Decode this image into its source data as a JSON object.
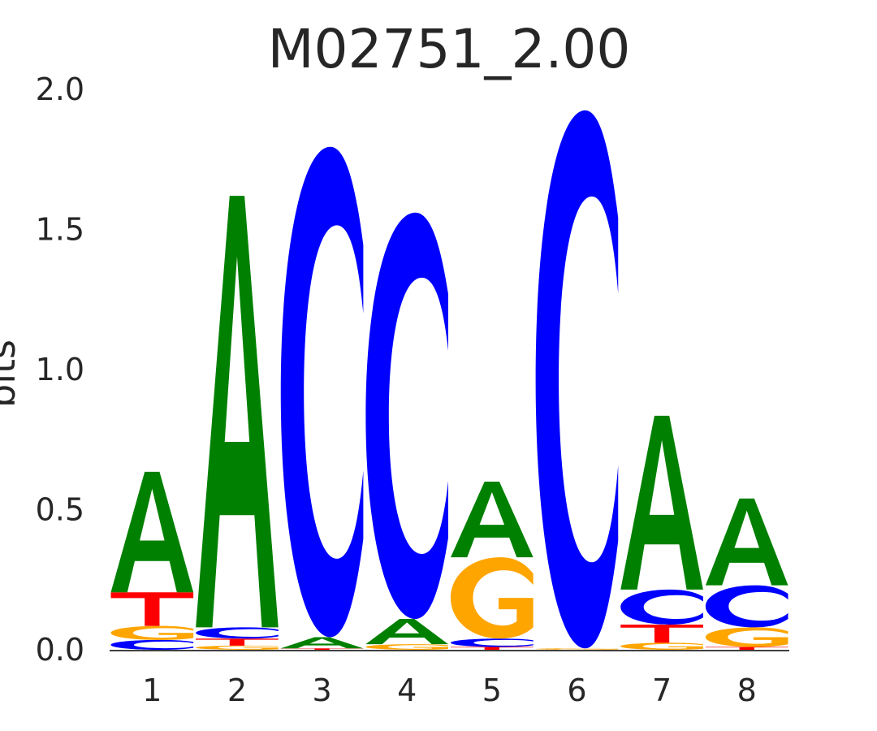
{
  "chart_data": {
    "type": "sequence-logo",
    "title": "M02751_2.00",
    "ylabel": "bits",
    "xlabel": "",
    "ylim": [
      0,
      2
    ],
    "yticks": [
      "0.0",
      "0.5",
      "1.0",
      "1.5",
      "2.0"
    ],
    "ytick_values": [
      0,
      0.5,
      1.0,
      1.5,
      2.0
    ],
    "positions": [
      "1",
      "2",
      "3",
      "4",
      "5",
      "6",
      "7",
      "8"
    ],
    "colors": {
      "A": "#008000",
      "C": "#0000ff",
      "G": "#ffa500",
      "T": "#ff0000"
    },
    "columns": [
      [
        {
          "letter": "C",
          "height": 0.035
        },
        {
          "letter": "G",
          "height": 0.05
        },
        {
          "letter": "T",
          "height": 0.12
        },
        {
          "letter": "A",
          "height": 0.43
        }
      ],
      [
        {
          "letter": "G",
          "height": 0.015
        },
        {
          "letter": "T",
          "height": 0.025
        },
        {
          "letter": "C",
          "height": 0.04
        },
        {
          "letter": "A",
          "height": 1.54
        }
      ],
      [
        {
          "letter": "T",
          "height": 0.005
        },
        {
          "letter": "A",
          "height": 0.04
        },
        {
          "letter": "C",
          "height": 1.75
        }
      ],
      [
        {
          "letter": "G",
          "height": 0.02
        },
        {
          "letter": "A",
          "height": 0.09
        },
        {
          "letter": "C",
          "height": 1.45
        }
      ],
      [
        {
          "letter": "T",
          "height": 0.01
        },
        {
          "letter": "C",
          "height": 0.03
        },
        {
          "letter": "G",
          "height": 0.29
        },
        {
          "letter": "A",
          "height": 0.27
        }
      ],
      [
        {
          "letter": "G",
          "height": 0.005
        },
        {
          "letter": "C",
          "height": 1.92
        }
      ],
      [
        {
          "letter": "G",
          "height": 0.025
        },
        {
          "letter": "T",
          "height": 0.065
        },
        {
          "letter": "C",
          "height": 0.125
        },
        {
          "letter": "A",
          "height": 0.62
        }
      ],
      [
        {
          "letter": "T",
          "height": 0.01
        },
        {
          "letter": "G",
          "height": 0.07
        },
        {
          "letter": "C",
          "height": 0.15
        },
        {
          "letter": "A",
          "height": 0.31
        }
      ]
    ]
  }
}
